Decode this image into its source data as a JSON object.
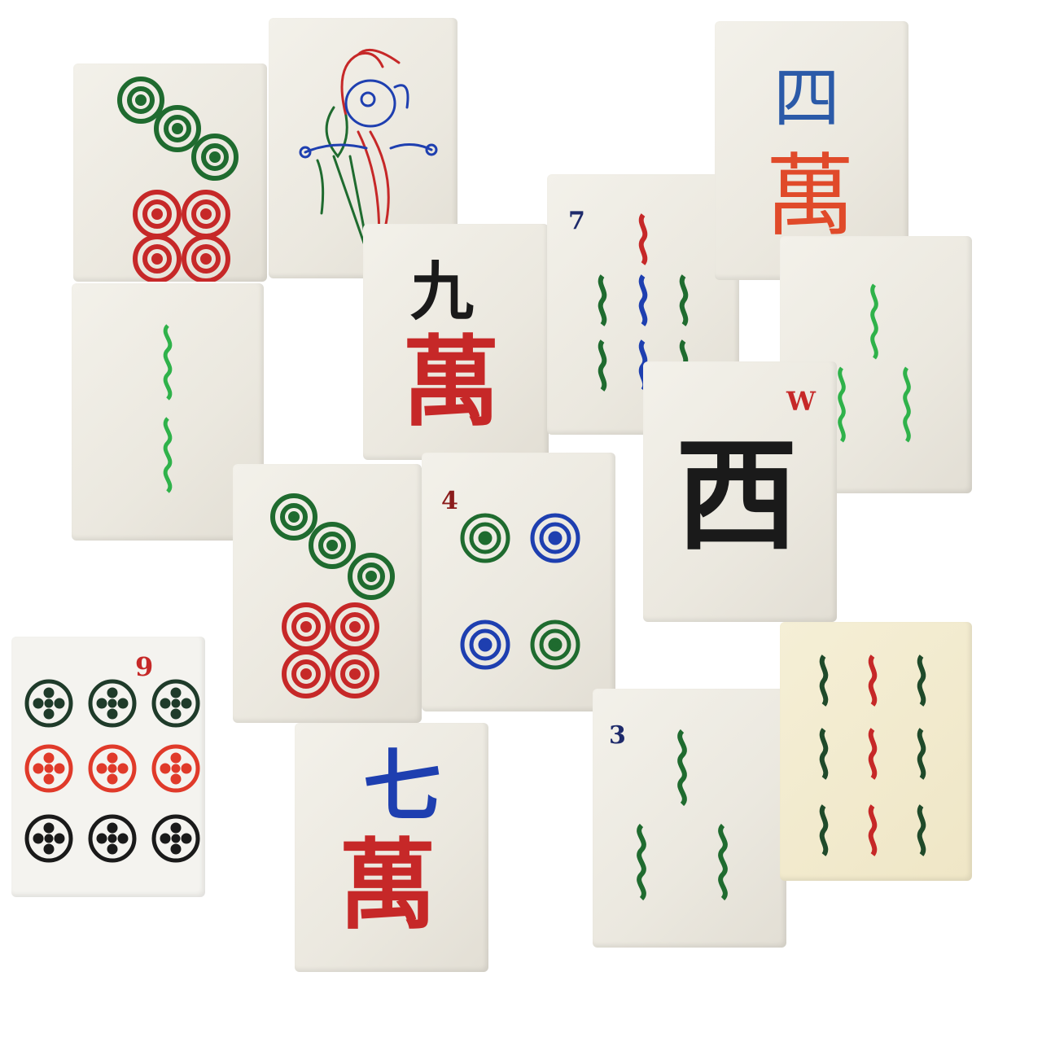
{
  "tiles": {
    "four_bamboo_index": "4",
    "seven_bamboo_index": "7",
    "three_bamboo_index": "3",
    "nine_dots_index": "9",
    "west_wind_index": "W",
    "west_wind_char": "西",
    "four_wan_number": "四",
    "four_wan_suit": "萬",
    "nine_wan_number": "九",
    "nine_wan_suit": "萬",
    "seven_wan_number": "七",
    "seven_wan_suit": "萬"
  },
  "colors": {
    "green": "#1f6b2f",
    "light_green": "#2fb24a",
    "red": "#c62828",
    "blue": "#1e3fb0",
    "black": "#1a1a1a",
    "tile_face": "#efece4"
  }
}
